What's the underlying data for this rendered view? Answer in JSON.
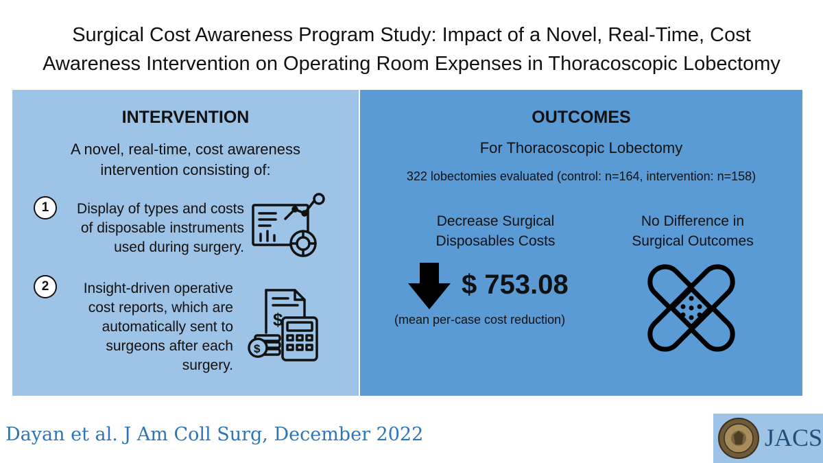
{
  "title": {
    "line1": "Surgical Cost Awareness Program Study: Impact of a Novel, Real-Time, Cost",
    "line2": "Awareness Intervention on Operating Room Expenses in Thoracoscopic Lobectomy"
  },
  "intervention": {
    "heading": "INTERVENTION",
    "intro_line1": "A novel, real-time, cost awareness",
    "intro_line2": "intervention consisting of:",
    "items": [
      {
        "number": "1",
        "lines": [
          "Display of types and costs",
          "of disposable instruments",
          "used during surgery."
        ],
        "icon": "analytics-dashboard-icon"
      },
      {
        "number": "2",
        "lines": [
          "Insight-driven operative",
          "cost reports, which are",
          "automatically sent to",
          "surgeons after each",
          "surgery."
        ],
        "icon": "invoice-calculator-icon"
      }
    ]
  },
  "outcomes": {
    "heading": "OUTCOMES",
    "subtitle": "For Thoracoscopic  Lobectomy",
    "count": "322 lobectomies evaluated (control: n=164, intervention: n=158)",
    "cost": {
      "label_line1": "Decrease Surgical",
      "label_line2": "Disposables Costs",
      "amount": "$ 753.08",
      "caption": "(mean per-case cost reduction)",
      "icon": "down-arrow-icon"
    },
    "surgical": {
      "label_line1": "No Difference in",
      "label_line2": "Surgical Outcomes",
      "icon": "bandage-icon"
    }
  },
  "footer": {
    "citation": "Dayan et al. J Am Coll Surg, December 2022",
    "journal": "JACS",
    "seal_icon": "acs-seal-icon"
  },
  "colors": {
    "left_panel": "#9dc3e6",
    "right_panel": "#5b9bd5",
    "citation": "#2e75b6"
  }
}
